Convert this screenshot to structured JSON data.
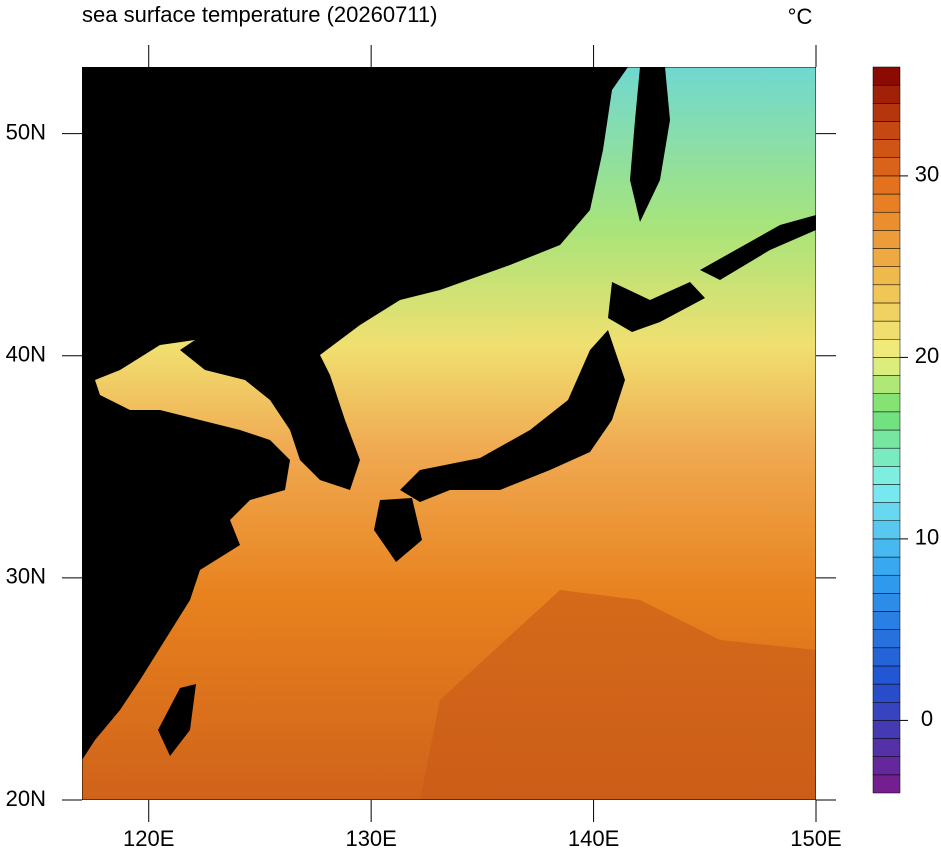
{
  "title": "sea surface temperature (20260711)",
  "unit": "°C",
  "map": {
    "xlim": [
      117,
      150
    ],
    "ylim": [
      20,
      53
    ],
    "xticks": [
      {
        "value": 120,
        "label": "120E"
      },
      {
        "value": 130,
        "label": "130E"
      },
      {
        "value": 140,
        "label": "140E"
      },
      {
        "value": 150,
        "label": "150E"
      }
    ],
    "yticks": [
      {
        "value": 20,
        "label": "20N"
      },
      {
        "value": 30,
        "label": "30N"
      },
      {
        "value": 40,
        "label": "40N"
      },
      {
        "value": 50,
        "label": "50N"
      }
    ]
  },
  "colorbar": {
    "range": [
      -4,
      36
    ],
    "step": 1,
    "ticks": [
      0,
      10,
      20,
      30
    ],
    "colormap": [
      [
        -4,
        "#7a1a8a"
      ],
      [
        2,
        "#2050d0"
      ],
      [
        8,
        "#30a0f0"
      ],
      [
        13,
        "#80f0f0"
      ],
      [
        17,
        "#70e070"
      ],
      [
        20,
        "#f0f080"
      ],
      [
        24,
        "#f0c050"
      ],
      [
        29,
        "#e87820"
      ],
      [
        33,
        "#c04010"
      ],
      [
        36,
        "#800000"
      ]
    ]
  }
}
